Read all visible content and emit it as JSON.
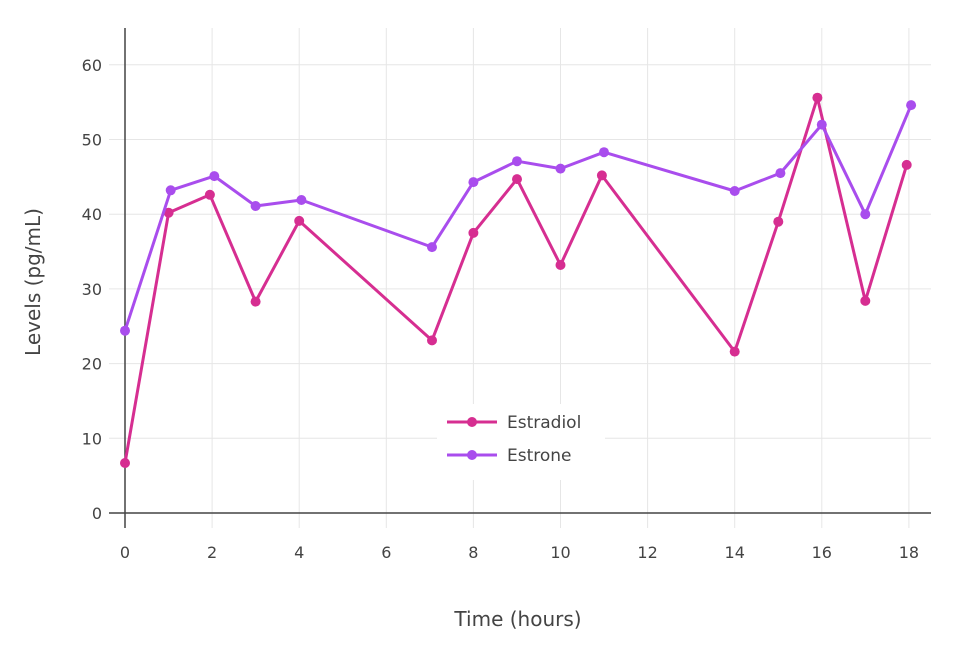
{
  "chart_data": {
    "type": "line",
    "xlabel": "Time (hours)",
    "ylabel": "Levels (pg/mL)",
    "xlim": [
      -0.2,
      18.5
    ],
    "ylim": [
      -2,
      65
    ],
    "xticks": [
      0,
      2,
      4,
      6,
      8,
      10,
      12,
      14,
      16,
      18
    ],
    "yticks": [
      0,
      10,
      20,
      30,
      40,
      50,
      60
    ],
    "grid": true,
    "legend_position": "bottom-center",
    "series": [
      {
        "name": "Estradiol",
        "color": "#d62e91",
        "points": [
          [
            0,
            6.7
          ],
          [
            1,
            40.2
          ],
          [
            1.95,
            42.6
          ],
          [
            3,
            28.3
          ],
          [
            4,
            39.1
          ],
          [
            7.05,
            23.1
          ],
          [
            8,
            37.5
          ],
          [
            9,
            44.7
          ],
          [
            10,
            33.2
          ],
          [
            10.95,
            45.2
          ],
          [
            14,
            21.6
          ],
          [
            15,
            39.0
          ],
          [
            15.9,
            55.6
          ],
          [
            17,
            28.4
          ],
          [
            17.95,
            46.6
          ]
        ]
      },
      {
        "name": "Estrone",
        "color": "#a94ded",
        "points": [
          [
            0,
            24.4
          ],
          [
            1.05,
            43.2
          ],
          [
            2.05,
            45.1
          ],
          [
            3,
            41.1
          ],
          [
            4.05,
            41.9
          ],
          [
            7.05,
            35.6
          ],
          [
            8,
            44.3
          ],
          [
            9,
            47.1
          ],
          [
            10,
            46.1
          ],
          [
            11,
            48.3
          ],
          [
            14,
            43.1
          ],
          [
            15.05,
            45.5
          ],
          [
            16,
            52.0
          ],
          [
            17,
            40.0
          ],
          [
            18.05,
            54.6
          ]
        ]
      }
    ]
  }
}
